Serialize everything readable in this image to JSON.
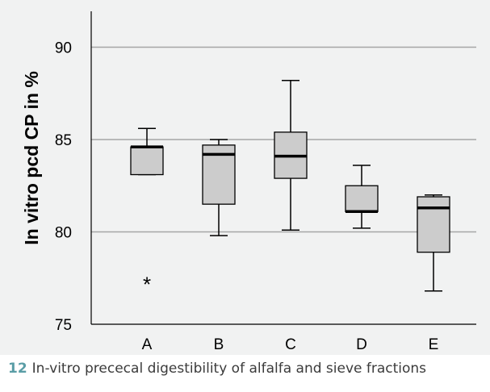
{
  "caption": {
    "number": "12",
    "text": "In-vitro prececal digestibility of alfalfa and sieve fractions"
  },
  "chart_data": {
    "type": "boxplot",
    "title": "",
    "xlabel": "",
    "ylabel": "In vitro pcd CP in %",
    "ylim": [
      75,
      92
    ],
    "yticks": [
      75,
      80,
      85,
      90
    ],
    "grid": true,
    "categories": [
      "A",
      "B",
      "C",
      "D",
      "E"
    ],
    "boxes": [
      {
        "category": "A",
        "whisker_low": 83.1,
        "q1": 83.1,
        "median": 84.6,
        "q3": 84.6,
        "whisker_high": 85.6,
        "outliers": [
          77.3
        ]
      },
      {
        "category": "B",
        "whisker_low": 79.8,
        "q1": 81.5,
        "median": 84.2,
        "q3": 84.7,
        "whisker_high": 85.0,
        "outliers": []
      },
      {
        "category": "C",
        "whisker_low": 80.1,
        "q1": 82.9,
        "median": 84.1,
        "q3": 85.4,
        "whisker_high": 88.2,
        "outliers": []
      },
      {
        "category": "D",
        "whisker_low": 80.2,
        "q1": 81.1,
        "median": 81.1,
        "q3": 82.5,
        "whisker_high": 83.6,
        "outliers": []
      },
      {
        "category": "E",
        "whisker_low": 76.8,
        "q1": 78.9,
        "median": 81.3,
        "q3": 81.9,
        "whisker_high": 82.0,
        "outliers": []
      }
    ],
    "colors": {
      "panel_background": "#f1f2f2",
      "box_fill": "#cccccc",
      "box_stroke": "#000000",
      "gridline": "#a6a6a6",
      "text": "#000000",
      "caption_number": "#5a9da6"
    }
  }
}
